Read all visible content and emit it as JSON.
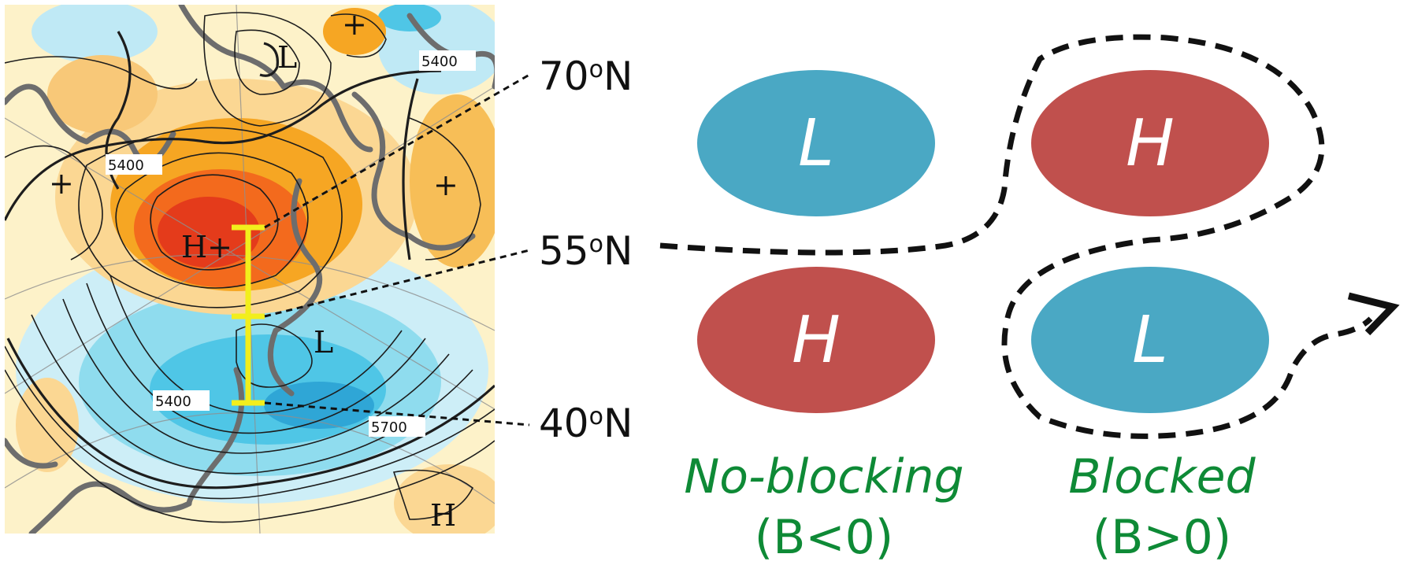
{
  "map": {
    "contour_labels": [
      "5400",
      "5400",
      "5400",
      "5700"
    ],
    "centers": [
      "H+",
      "L",
      "L",
      "H",
      "+",
      "+",
      "+"
    ]
  },
  "latitudes": [
    {
      "value": "70",
      "degree": "o",
      "hemisphere": "N"
    },
    {
      "value": "55",
      "degree": "o",
      "hemisphere": "N"
    },
    {
      "value": "40",
      "degree": "o",
      "hemisphere": "N"
    }
  ],
  "no_blocking": {
    "upper": "L",
    "lower": "H",
    "title": "No-blocking",
    "condition": "(B<0)"
  },
  "blocked": {
    "upper": "H",
    "lower": "L",
    "title": "Blocked",
    "condition": "(B>0)"
  },
  "colors": {
    "low": "#4aa8c4",
    "high": "#c0504d",
    "caption": "#0e8a36",
    "marker": "#f2ee1c",
    "anomaly_strong": "#e43b1b",
    "anomaly_warm": "#f6a623",
    "anomaly_cool": "#2fbde0"
  }
}
